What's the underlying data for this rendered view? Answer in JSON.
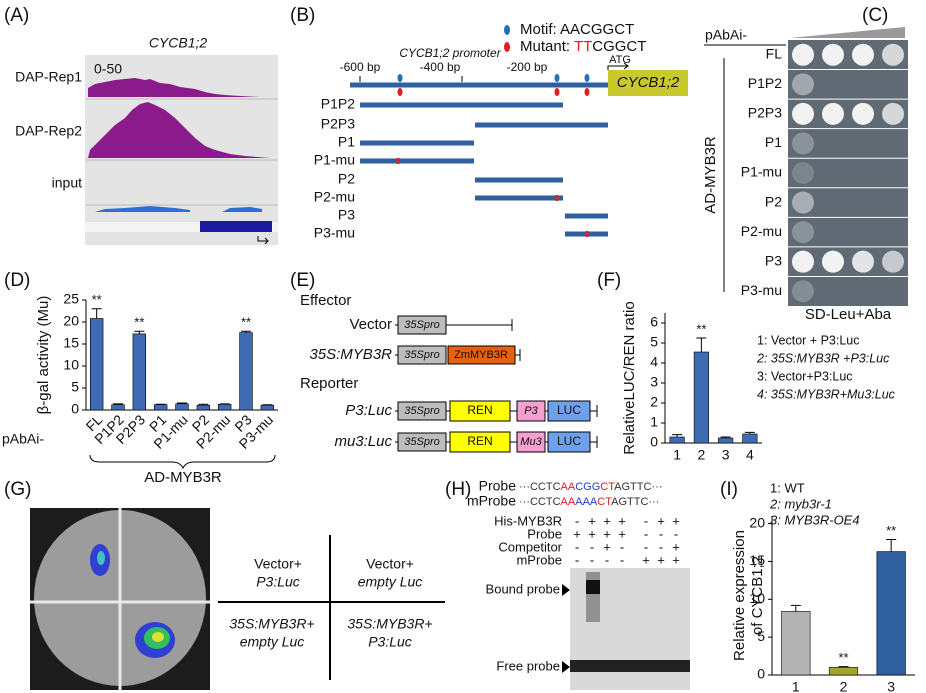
{
  "panel_labels": [
    "(A)",
    "(B)",
    "(C)",
    "(D)",
    "(E)",
    "(F)",
    "(G)",
    "(H)",
    "(I)"
  ],
  "panel_a": {
    "title": "CYCB1;2",
    "scale": "0-50",
    "tracks": [
      "DAP-Rep1",
      "DAP-Rep2",
      "input"
    ]
  },
  "panel_b": {
    "motif_label": "Motif:",
    "motif": "AACGGCT",
    "mutant_label": "Mutant:",
    "mutant_red": "TT",
    "mutant_rest": "CGGCT",
    "promoter": "CYCB1;2 promoter",
    "positions": [
      "-600 bp",
      "-400 bp",
      "-200 bp"
    ],
    "atg": "ATG",
    "gene": "CYCB1;2",
    "fragments": [
      "P1P2",
      "P2P3",
      "P1",
      "P1-mu",
      "P2",
      "P2-mu",
      "P3",
      "P3-mu"
    ]
  },
  "panel_c": {
    "condition": "pAbAi-",
    "rows": [
      "FL",
      "P1P2",
      "P2P3",
      "P1",
      "P1-mu",
      "P2",
      "P2-mu",
      "P3",
      "P3-mu"
    ],
    "group": "AD-MYB3R",
    "medium": "SD-Leu+Aba"
  },
  "panel_e": {
    "effector": "Effector",
    "reporter": "Reporter",
    "constructs": [
      {
        "name": "Vector",
        "promoter": "35Spro"
      },
      {
        "name": "35S:MYB3R",
        "promoter": "35Spro",
        "gene": "ZmMYB3R"
      },
      {
        "name": "P3:Luc",
        "promoter": "35Spro",
        "gene": "REN",
        "element": "P3",
        "reporter": "LUC"
      },
      {
        "name": "mu3:Luc",
        "promoter": "35Spro",
        "gene": "REN",
        "element": "Mu3",
        "reporter": "LUC"
      }
    ]
  },
  "panel_g": {
    "cells": [
      [
        "Vector+",
        "P3:Luc"
      ],
      [
        "Vector+",
        "empty Luc"
      ],
      [
        "35S:MYB3R+",
        "empty Luc"
      ],
      [
        "35S:MYB3R+",
        "P3:Luc"
      ]
    ]
  },
  "panel_h": {
    "sequences": [
      {
        "name": "Probe",
        "parts": [
          {
            "text": "···CCTC",
            "color": "#333333"
          },
          {
            "text": "AA",
            "color": "#e02020"
          },
          {
            "text": "CGG",
            "color": "#2040d0"
          },
          {
            "text": "CT",
            "color": "#e02020"
          },
          {
            "text": "AGTTC···",
            "color": "#333333"
          }
        ]
      },
      {
        "name": "mProbe",
        "parts": [
          {
            "text": "···CCTC",
            "color": "#333333"
          },
          {
            "text": "AA",
            "color": "#e02020"
          },
          {
            "text": "AAA",
            "color": "#2040d0"
          },
          {
            "text": "CT",
            "color": "#e02020"
          },
          {
            "text": "AGTTC···",
            "color": "#333333"
          }
        ]
      }
    ],
    "rows": [
      {
        "name": "His-MYB3R",
        "signs": [
          "-",
          "+",
          "+",
          "+",
          "-",
          "+",
          "+"
        ]
      },
      {
        "name": "Probe",
        "signs": [
          "+",
          "+",
          "+",
          "+",
          "-",
          "-",
          "-"
        ]
      },
      {
        "name": "Competitor",
        "signs": [
          "-",
          "-",
          "+",
          "-",
          "-",
          "-",
          "+"
        ]
      },
      {
        "name": "mProbe",
        "signs": [
          "-",
          "-",
          "-",
          "-",
          "+",
          "+",
          "+"
        ]
      }
    ],
    "bands": [
      "Bound probe",
      "Free probe"
    ]
  },
  "chart_data": [
    {
      "type": "bar",
      "ylabel": "β-gal activity (Mu)",
      "categories": [
        "FL",
        "P1P2",
        "P2P3",
        "P1",
        "P1-mu",
        "P2",
        "P2-mu",
        "P3",
        "P3-mu"
      ],
      "values": [
        20.8,
        1.2,
        17.3,
        1.2,
        1.4,
        1.1,
        1.3,
        17.6,
        1.1
      ],
      "errors": [
        2.2,
        0.2,
        0.6,
        0.1,
        0.2,
        0.2,
        0.1,
        0.3,
        0.1
      ],
      "significance": [
        "**",
        null,
        "**",
        null,
        null,
        null,
        null,
        "**",
        null
      ],
      "color": "#3f6bb4",
      "ylim": [
        0,
        25
      ],
      "yticks": [
        0,
        5,
        10,
        15,
        20,
        25
      ],
      "row_label": "pAbAi-",
      "group_label": "AD-MYB3R"
    },
    {
      "type": "bar",
      "ylabel": "RelativeLUC/REN ratio",
      "categories": [
        "1",
        "2",
        "3",
        "4"
      ],
      "values": [
        0.3,
        4.55,
        0.25,
        0.45
      ],
      "errors": [
        0.12,
        0.7,
        0.05,
        0.08
      ],
      "significance": [
        null,
        "**",
        null,
        null
      ],
      "color": "#3f6bb4",
      "ylim": [
        0,
        6.5
      ],
      "yticks": [
        0,
        1,
        2,
        3,
        4,
        5,
        6
      ],
      "legend": [
        "1: Vector + P3:Luc",
        "2: 35S:MYB3R +P3:Luc",
        "3: Vector+P3:Luc",
        "4: 35S:MYB3R+Mu3:Luc"
      ]
    },
    {
      "type": "bar",
      "ylabel": [
        "Relative expression",
        "of CYCB1;2"
      ],
      "categories": [
        "1",
        "2",
        "3"
      ],
      "values": [
        8.4,
        1.0,
        16.3
      ],
      "errors": [
        0.8,
        0.1,
        1.6
      ],
      "significance": [
        null,
        "**",
        "**"
      ],
      "colors": [
        "#b3b3b3",
        "#a5a52a",
        "#2f5f9e"
      ],
      "ylim": [
        0,
        21
      ],
      "yticks": [
        0,
        5,
        10,
        15,
        20
      ],
      "legend": [
        "1: WT",
        "2: myb3r-1",
        "3: MYB3R-OE4"
      ]
    }
  ]
}
